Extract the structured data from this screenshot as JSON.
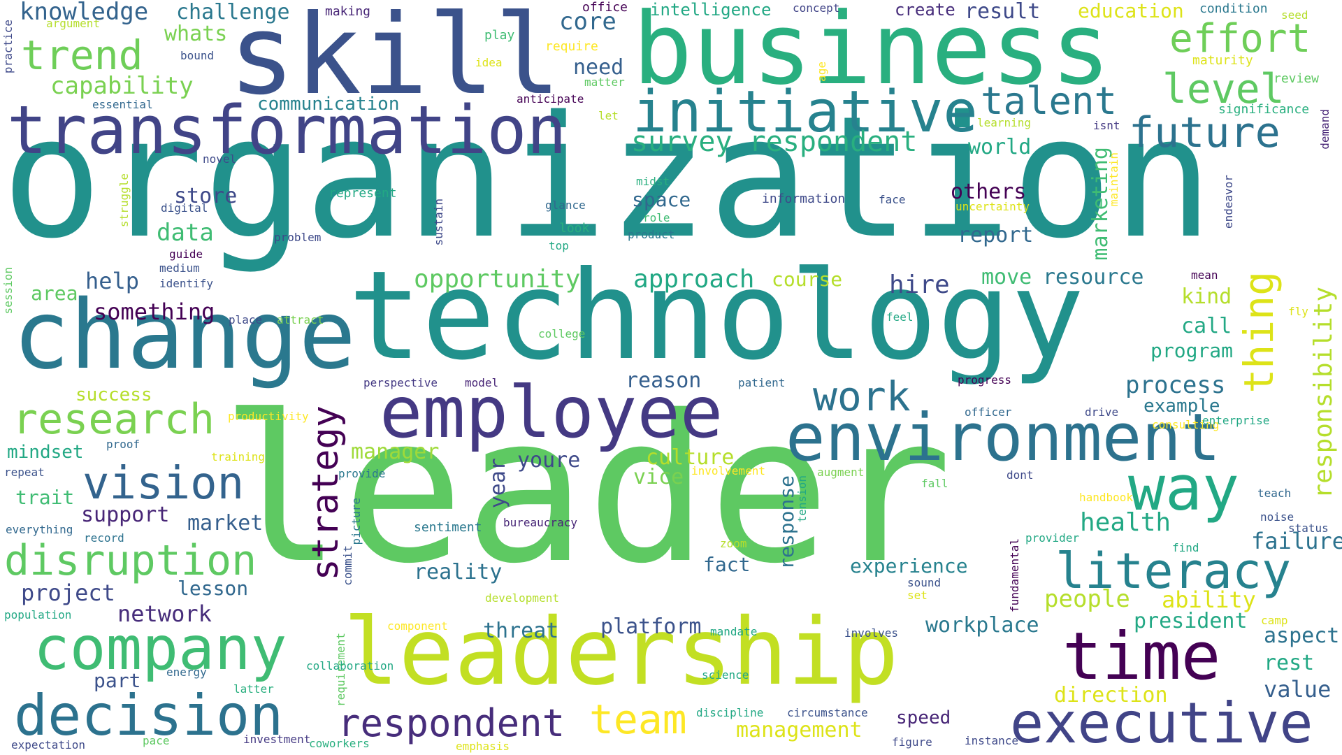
{
  "words": [
    {
      "text": "organization",
      "color": "#21918c"
    },
    {
      "text": "leader",
      "color": "#5ec962"
    },
    {
      "text": "technology",
      "color": "#21918c"
    },
    {
      "text": "business",
      "color": "#29af7f"
    },
    {
      "text": "skill",
      "color": "#3b528b"
    },
    {
      "text": "change",
      "color": "#2a788e"
    },
    {
      "text": "leadership",
      "color": "#c2df23"
    },
    {
      "text": "transformation",
      "color": "#414487"
    },
    {
      "text": "employee",
      "color": "#443983"
    },
    {
      "text": "environment",
      "color": "#2c728e"
    },
    {
      "text": "initiative",
      "color": "#26828e"
    },
    {
      "text": "time",
      "color": "#440154"
    },
    {
      "text": "company",
      "color": "#3fbc73"
    },
    {
      "text": "decision",
      "color": "#2c728e"
    },
    {
      "text": "executive",
      "color": "#414487"
    },
    {
      "text": "way",
      "color": "#22a884"
    },
    {
      "text": "future",
      "color": "#2c728e"
    },
    {
      "text": "research",
      "color": "#7ad151"
    },
    {
      "text": "vision",
      "color": "#33638d"
    },
    {
      "text": "literacy",
      "color": "#26828e"
    },
    {
      "text": "disruption",
      "color": "#5ec962"
    },
    {
      "text": "effort",
      "color": "#6ece58"
    },
    {
      "text": "trend",
      "color": "#6ece58"
    },
    {
      "text": "talent",
      "color": "#2a788e"
    },
    {
      "text": "level",
      "color": "#5ec962"
    },
    {
      "text": "work",
      "color": "#2c728e"
    },
    {
      "text": "respondent",
      "color": "#472d7b"
    },
    {
      "text": "team",
      "color": "#fde725"
    },
    {
      "text": "strategy",
      "color": "#440154"
    },
    {
      "text": "survey respondent",
      "color": "#29af7f"
    },
    {
      "text": "knowledge",
      "color": "#33638d"
    },
    {
      "text": "challenge",
      "color": "#2a788e"
    },
    {
      "text": "capability",
      "color": "#7ad151"
    },
    {
      "text": "whats",
      "color": "#7ad151"
    },
    {
      "text": "communication",
      "color": "#26828e"
    },
    {
      "text": "thing",
      "color": "#dde318"
    },
    {
      "text": "responsibility",
      "color": "#b5de2b"
    },
    {
      "text": "opportunity",
      "color": "#5ec962"
    },
    {
      "text": "approach",
      "color": "#22a884"
    },
    {
      "text": "data",
      "color": "#3fbc73"
    },
    {
      "text": "help",
      "color": "#355f8d"
    },
    {
      "text": "store",
      "color": "#3e4989"
    },
    {
      "text": "something",
      "color": "#440154"
    },
    {
      "text": "hire",
      "color": "#3e4989"
    },
    {
      "text": "move",
      "color": "#3fbc73"
    },
    {
      "text": "resource",
      "color": "#2a788e"
    },
    {
      "text": "course",
      "color": "#b5de2b"
    },
    {
      "text": "others",
      "color": "#440154"
    },
    {
      "text": "report",
      "color": "#31688e"
    },
    {
      "text": "space",
      "color": "#31688e"
    },
    {
      "text": "marketing",
      "color": "#3fbc73"
    },
    {
      "text": "kind",
      "color": "#b5de2b"
    },
    {
      "text": "call",
      "color": "#22a884"
    },
    {
      "text": "program",
      "color": "#22a884"
    },
    {
      "text": "process",
      "color": "#2c728e"
    },
    {
      "text": "example",
      "color": "#2a788e"
    },
    {
      "text": "reason",
      "color": "#355f8d"
    },
    {
      "text": "manager",
      "color": "#9fda3a"
    },
    {
      "text": "culture",
      "color": "#b5de2b"
    },
    {
      "text": "youre",
      "color": "#3e4989"
    },
    {
      "text": "year",
      "color": "#3e4989"
    },
    {
      "text": "vice",
      "color": "#7ad151"
    },
    {
      "text": "support",
      "color": "#482677"
    },
    {
      "text": "market",
      "color": "#355f8d"
    },
    {
      "text": "project",
      "color": "#3e4989"
    },
    {
      "text": "lesson",
      "color": "#31688e"
    },
    {
      "text": "network",
      "color": "#472d7b"
    },
    {
      "text": "reality",
      "color": "#2c728e"
    },
    {
      "text": "experience",
      "color": "#26828e"
    },
    {
      "text": "response",
      "color": "#2c728e"
    },
    {
      "text": "health",
      "color": "#22a884"
    },
    {
      "text": "failure",
      "color": "#2c728e"
    },
    {
      "text": "people",
      "color": "#b5de2b"
    },
    {
      "text": "ability",
      "color": "#dde318"
    },
    {
      "text": "workplace",
      "color": "#2a788e"
    },
    {
      "text": "president",
      "color": "#22a884"
    },
    {
      "text": "aspect",
      "color": "#2c728e"
    },
    {
      "text": "rest",
      "color": "#22a884"
    },
    {
      "text": "value",
      "color": "#355f8d"
    },
    {
      "text": "direction",
      "color": "#dde318"
    },
    {
      "text": "management",
      "color": "#dde318"
    },
    {
      "text": "threat",
      "color": "#2c728e"
    },
    {
      "text": "platform",
      "color": "#3b528b"
    },
    {
      "text": "fact",
      "color": "#31688e"
    },
    {
      "text": "speed",
      "color": "#482677"
    },
    {
      "text": "part",
      "color": "#3b528b"
    },
    {
      "text": "core",
      "color": "#31688e"
    },
    {
      "text": "need",
      "color": "#355f8d"
    },
    {
      "text": "world",
      "color": "#22a884"
    },
    {
      "text": "success",
      "color": "#b5de2b"
    },
    {
      "text": "mindset",
      "color": "#22a884"
    },
    {
      "text": "trait",
      "color": "#3fbc73"
    },
    {
      "text": "area",
      "color": "#5ec962"
    },
    {
      "text": "result",
      "color": "#3e4989"
    },
    {
      "text": "create",
      "color": "#472d7b"
    },
    {
      "text": "education",
      "color": "#dde318"
    },
    {
      "text": "intelligence",
      "color": "#22a884"
    },
    {
      "text": "office",
      "color": "#440154"
    },
    {
      "text": "making",
      "color": "#482677"
    },
    {
      "text": "concept",
      "color": "#414487"
    },
    {
      "text": "condition",
      "color": "#2a788e"
    },
    {
      "text": "seed",
      "color": "#b5de2b"
    },
    {
      "text": "argument",
      "color": "#b5de2b"
    },
    {
      "text": "practice",
      "color": "#3e4989"
    },
    {
      "text": "bound",
      "color": "#3b528b"
    },
    {
      "text": "play",
      "color": "#3fbc73"
    },
    {
      "text": "require",
      "color": "#fde725"
    },
    {
      "text": "idea",
      "color": "#dde318"
    },
    {
      "text": "matter",
      "color": "#5ec962"
    },
    {
      "text": "maturity",
      "color": "#dde318"
    },
    {
      "text": "review",
      "color": "#5ec962"
    },
    {
      "text": "essential",
      "color": "#31688e"
    },
    {
      "text": "anticipate",
      "color": "#440154"
    },
    {
      "text": "let",
      "color": "#b5de2b"
    },
    {
      "text": "age",
      "color": "#fde725"
    },
    {
      "text": "significance",
      "color": "#29af7f"
    },
    {
      "text": "learning",
      "color": "#b5de2b"
    },
    {
      "text": "isnt",
      "color": "#443983"
    },
    {
      "text": "demand",
      "color": "#482677"
    },
    {
      "text": "novel",
      "color": "#3e4989"
    },
    {
      "text": "struggle",
      "color": "#b5de2b"
    },
    {
      "text": "digital",
      "color": "#3b528b"
    },
    {
      "text": "represent",
      "color": "#22a884"
    },
    {
      "text": "midst",
      "color": "#29af7f"
    },
    {
      "text": "glance",
      "color": "#31688e"
    },
    {
      "text": "information",
      "color": "#3e4989"
    },
    {
      "text": "face",
      "color": "#3b528b"
    },
    {
      "text": "uncertainty",
      "color": "#dde318"
    },
    {
      "text": "sustain",
      "color": "#3e4989"
    },
    {
      "text": "role",
      "color": "#3fbc73"
    },
    {
      "text": "look",
      "color": "#29af7f"
    },
    {
      "text": "product",
      "color": "#2a788e"
    },
    {
      "text": "top",
      "color": "#22a884"
    },
    {
      "text": "maintain",
      "color": "#fde725"
    },
    {
      "text": "endeavor",
      "color": "#3e4989"
    },
    {
      "text": "guide",
      "color": "#440154"
    },
    {
      "text": "problem",
      "color": "#3e4989"
    },
    {
      "text": "medium",
      "color": "#3b528b"
    },
    {
      "text": "identify",
      "color": "#3b528b"
    },
    {
      "text": "mean",
      "color": "#440154"
    },
    {
      "text": "session",
      "color": "#5ec962"
    },
    {
      "text": "fly",
      "color": "#dde318"
    },
    {
      "text": "place",
      "color": "#3e4989"
    },
    {
      "text": "attract",
      "color": "#7ad151"
    },
    {
      "text": "feel",
      "color": "#22a884"
    },
    {
      "text": "college",
      "color": "#5ec962"
    },
    {
      "text": "progress",
      "color": "#440154"
    },
    {
      "text": "perspective",
      "color": "#443983"
    },
    {
      "text": "model",
      "color": "#482677"
    },
    {
      "text": "patient",
      "color": "#31688e"
    },
    {
      "text": "officer",
      "color": "#31688e"
    },
    {
      "text": "drive",
      "color": "#3e4989"
    },
    {
      "text": "consulting",
      "color": "#fde725"
    },
    {
      "text": "enterprise",
      "color": "#22a884"
    },
    {
      "text": "productivity",
      "color": "#fde725"
    },
    {
      "text": "proof",
      "color": "#31688e"
    },
    {
      "text": "repeat",
      "color": "#3b528b"
    },
    {
      "text": "training",
      "color": "#dde318"
    },
    {
      "text": "provide",
      "color": "#2a788e"
    },
    {
      "text": "involvement",
      "color": "#fde725"
    },
    {
      "text": "augment",
      "color": "#7ad151"
    },
    {
      "text": "fall",
      "color": "#5ec962"
    },
    {
      "text": "dont",
      "color": "#3e4989"
    },
    {
      "text": "teach",
      "color": "#31688e"
    },
    {
      "text": "handbook",
      "color": "#fde725"
    },
    {
      "text": "everything",
      "color": "#31688e"
    },
    {
      "text": "record",
      "color": "#2c728e"
    },
    {
      "text": "sentiment",
      "color": "#2a788e"
    },
    {
      "text": "bureaucracy",
      "color": "#482677"
    },
    {
      "text": "picture",
      "color": "#2a788e"
    },
    {
      "text": "tension",
      "color": "#22a884"
    },
    {
      "text": "fundamental",
      "color": "#440154"
    },
    {
      "text": "provider",
      "color": "#22a884"
    },
    {
      "text": "noise",
      "color": "#3b528b"
    },
    {
      "text": "status",
      "color": "#3b528b"
    },
    {
      "text": "find",
      "color": "#22a884"
    },
    {
      "text": "zoom",
      "color": "#b5de2b"
    },
    {
      "text": "commit",
      "color": "#3b528b"
    },
    {
      "text": "sound",
      "color": "#3b528b"
    },
    {
      "text": "set",
      "color": "#dde318"
    },
    {
      "text": "development",
      "color": "#b5de2b"
    },
    {
      "text": "population",
      "color": "#22a884"
    },
    {
      "text": "component",
      "color": "#fde725"
    },
    {
      "text": "mandate",
      "color": "#22a884"
    },
    {
      "text": "involves",
      "color": "#3b528b"
    },
    {
      "text": "camp",
      "color": "#dde318"
    },
    {
      "text": "requirement",
      "color": "#5ec962"
    },
    {
      "text": "energy",
      "color": "#31688e"
    },
    {
      "text": "collaboration",
      "color": "#22a884"
    },
    {
      "text": "latter",
      "color": "#29af7f"
    },
    {
      "text": "science",
      "color": "#22a884"
    },
    {
      "text": "discipline",
      "color": "#22a884"
    },
    {
      "text": "circumstance",
      "color": "#3b528b"
    },
    {
      "text": "expectation",
      "color": "#3e4989"
    },
    {
      "text": "pace",
      "color": "#5ec962"
    },
    {
      "text": "investment",
      "color": "#443983"
    },
    {
      "text": "coworkers",
      "color": "#29af7f"
    },
    {
      "text": "emphasis",
      "color": "#dde318"
    },
    {
      "text": "figure",
      "color": "#3e4989"
    },
    {
      "text": "instance",
      "color": "#3e4989"
    }
  ]
}
